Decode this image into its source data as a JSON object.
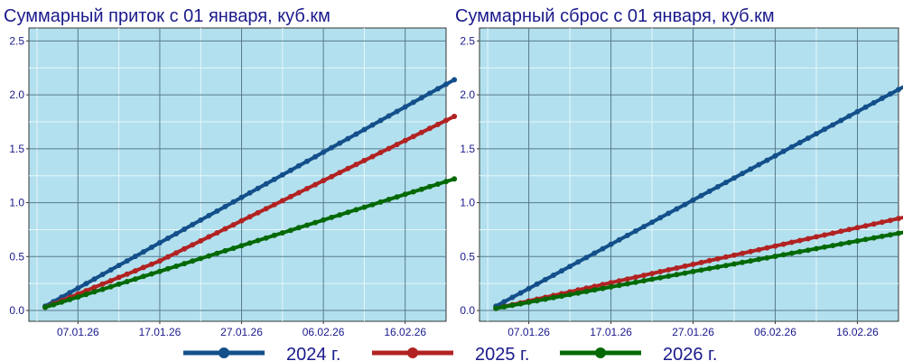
{
  "chart_data": [
    {
      "type": "line",
      "title": "Суммарный приток с 01 января, куб.км",
      "xlabel": "",
      "ylabel": "",
      "x_range": [
        "2026-01-01",
        "2026-02-21"
      ],
      "ylim": [
        -0.1,
        2.62
      ],
      "yticks": [
        "0.0",
        "0.5",
        "1.0",
        "1.5",
        "2.0",
        "2.5"
      ],
      "xticks": [
        "07.01.26",
        "17.01.26",
        "27.01.26",
        "06.02.26",
        "16.02.26"
      ],
      "grid": true,
      "series": [
        {
          "name": "2024 г.",
          "start": 0.04,
          "end": 2.14
        },
        {
          "name": "2025 г.",
          "start": 0.03,
          "end": 1.8,
          "bend_day": 14,
          "bend_value": 0.46
        },
        {
          "name": "2026 г.",
          "start": 0.03,
          "end": 1.22
        }
      ]
    },
    {
      "type": "line",
      "title": "Суммарный сброс с 01 января, куб.км",
      "xlabel": "",
      "ylabel": "",
      "x_range": [
        "2026-01-01",
        "2026-02-21"
      ],
      "ylim": [
        -0.1,
        2.62
      ],
      "yticks": [
        "0.0",
        "0.5",
        "1.0",
        "1.5",
        "2.0",
        "2.5"
      ],
      "xticks": [
        "07.01.26",
        "17.01.26",
        "27.01.26",
        "06.02.26",
        "16.02.26"
      ],
      "grid": true,
      "series": [
        {
          "name": "2024 г.",
          "start": 0.04,
          "end": 2.09
        },
        {
          "name": "2025 г.",
          "start": 0.02,
          "end": 0.87
        },
        {
          "name": "2026 г.",
          "start": 0.02,
          "end": 0.73
        }
      ]
    }
  ],
  "series_days": {
    "first": 0,
    "last": 50
  },
  "colors": {
    "panel_bg": "#b2e0ee",
    "grid_major": "#587a8e",
    "grid_minor": "#e8f6fb",
    "series": [
      "#134f8a",
      "#b22222",
      "#046904"
    ]
  },
  "legend": {
    "placement": "bottom",
    "items": [
      "2024 г.",
      "2025 г.",
      "2026 г."
    ]
  }
}
